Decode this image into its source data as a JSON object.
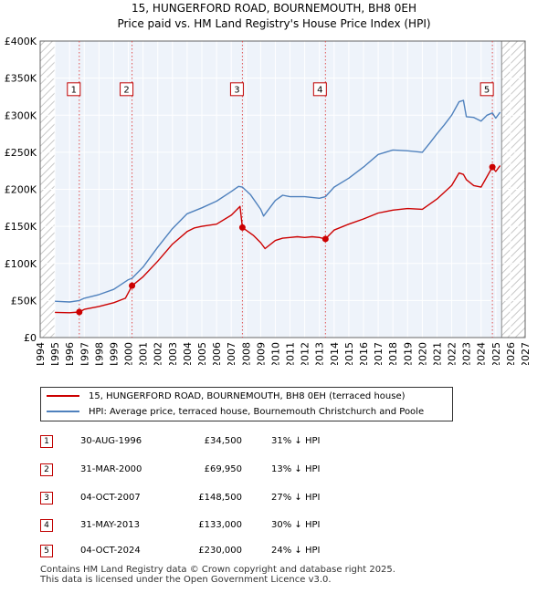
{
  "chart_data": {
    "type": "line",
    "title": "15, HUNGERFORD ROAD, BOURNEMOUTH, BH8 0EH",
    "subtitle": "Price paid vs. HM Land Registry's House Price Index (HPI)",
    "xlim": [
      1994,
      2027
    ],
    "ylim": [
      0,
      400000
    ],
    "y_ticks": [
      0,
      50000,
      100000,
      150000,
      200000,
      250000,
      300000,
      350000,
      400000
    ],
    "y_tick_labels": [
      "£0",
      "£50K",
      "£100K",
      "£150K",
      "£200K",
      "£250K",
      "£300K",
      "£350K",
      "£400K"
    ],
    "x_ticks": [
      1994,
      1995,
      1996,
      1997,
      1998,
      1999,
      2000,
      2001,
      2002,
      2003,
      2004,
      2005,
      2006,
      2007,
      2008,
      2009,
      2010,
      2011,
      2012,
      2013,
      2014,
      2015,
      2016,
      2017,
      2018,
      2019,
      2020,
      2021,
      2022,
      2023,
      2024,
      2025,
      2026,
      2027
    ],
    "x_tick_labels": [
      "1994",
      "1995",
      "1996",
      "1997",
      "1998",
      "1999",
      "2000",
      "2001",
      "2002",
      "2003",
      "2004",
      "2005",
      "2006",
      "2007",
      "2008",
      "2009",
      "2010",
      "2011",
      "2012",
      "2013",
      "2014",
      "2015",
      "2016",
      "2017",
      "2018",
      "2019",
      "2020",
      "2021",
      "2022",
      "2023",
      "2024",
      "2025",
      "2026",
      "2027"
    ],
    "data_start": 1995.0,
    "data_end": 2025.4,
    "grid": true,
    "series": [
      {
        "name": "15, HUNGERFORD ROAD, BOURNEMOUTH, BH8 0EH (terraced house)",
        "color": "#cc0000",
        "x": [
          1995.0,
          1996.0,
          1996.66,
          1997.0,
          1998.0,
          1999.0,
          1999.8,
          2000.25,
          2001.0,
          2002.0,
          2003.0,
          2004.0,
          2004.5,
          2005.0,
          2006.0,
          2007.0,
          2007.6,
          2007.76,
          2008.0,
          2008.5,
          2009.0,
          2009.3,
          2010.0,
          2010.5,
          2011.0,
          2011.5,
          2012.0,
          2012.5,
          2013.0,
          2013.41,
          2014.0,
          2015.0,
          2016.0,
          2017.0,
          2017.5,
          2018.0,
          2019.0,
          2020.0,
          2020.5,
          2021.0,
          2022.0,
          2022.5,
          2022.8,
          2023.0,
          2023.5,
          2024.0,
          2024.77,
          2025.0,
          2025.3
        ],
        "values": [
          34000,
          33500,
          34500,
          38000,
          42000,
          47000,
          53000,
          69950,
          82000,
          103000,
          126000,
          143000,
          148000,
          150000,
          153000,
          165000,
          177000,
          148500,
          145000,
          138000,
          128000,
          120000,
          131000,
          134000,
          135000,
          136000,
          135000,
          136000,
          135000,
          133000,
          145000,
          153000,
          160000,
          168000,
          170000,
          172000,
          174000,
          173000,
          180000,
          187000,
          205000,
          222000,
          220000,
          213000,
          205000,
          203000,
          230000,
          224000,
          232000
        ]
      },
      {
        "name": "HPI: Average price, terraced house, Bournemouth Christchurch and Poole",
        "color": "#4f81bd",
        "x": [
          1995.0,
          1996.0,
          1996.66,
          1997.0,
          1998.0,
          1999.0,
          2000.0,
          2000.25,
          2001.0,
          2002.0,
          2003.0,
          2004.0,
          2005.0,
          2006.0,
          2007.0,
          2007.5,
          2007.76,
          2008.3,
          2009.0,
          2009.2,
          2010.0,
          2010.5,
          2011.0,
          2012.0,
          2013.0,
          2013.41,
          2014.0,
          2015.0,
          2016.0,
          2017.0,
          2018.0,
          2019.0,
          2020.0,
          2020.5,
          2021.0,
          2021.5,
          2022.0,
          2022.5,
          2022.8,
          2023.0,
          2023.5,
          2024.0,
          2024.4,
          2024.77,
          2025.0,
          2025.3
        ],
        "values": [
          49000,
          48000,
          50000,
          53000,
          58000,
          65000,
          78000,
          80000,
          95000,
          122000,
          147000,
          167000,
          175000,
          184000,
          197000,
          204000,
          203000,
          193000,
          173000,
          164000,
          185000,
          192000,
          190000,
          190000,
          188000,
          190000,
          203000,
          215000,
          230000,
          247000,
          253000,
          252000,
          250000,
          262000,
          275000,
          287000,
          300000,
          318000,
          320000,
          298000,
          297000,
          292000,
          300000,
          303000,
          296000,
          304000
        ]
      }
    ],
    "sales": [
      {
        "label": "1",
        "x": 1996.66,
        "price": 34500
      },
      {
        "label": "2",
        "x": 2000.25,
        "price": 69950
      },
      {
        "label": "3",
        "x": 2007.76,
        "price": 148500
      },
      {
        "label": "4",
        "x": 2013.41,
        "price": 133000
      },
      {
        "label": "5",
        "x": 2024.77,
        "price": 230000
      }
    ],
    "box_value": 335000
  },
  "legend": {
    "property_label": "15, HUNGERFORD ROAD, BOURNEMOUTH, BH8 0EH (terraced house)",
    "hpi_label": "HPI: Average price, terraced house, Bournemouth Christchurch and Poole"
  },
  "transactions": [
    {
      "num": "1",
      "date": "30-AUG-1996",
      "price": "£34,500",
      "hpi": "31% ↓ HPI"
    },
    {
      "num": "2",
      "date": "31-MAR-2000",
      "price": "£69,950",
      "hpi": "13% ↓ HPI"
    },
    {
      "num": "3",
      "date": "04-OCT-2007",
      "price": "£148,500",
      "hpi": "27% ↓ HPI"
    },
    {
      "num": "4",
      "date": "31-MAY-2013",
      "price": "£133,000",
      "hpi": "30% ↓ HPI"
    },
    {
      "num": "5",
      "date": "04-OCT-2024",
      "price": "£230,000",
      "hpi": "24% ↓ HPI"
    }
  ],
  "footer": {
    "line1": "Contains HM Land Registry data © Crown copyright and database right 2025.",
    "line2": "This data is licensed under the Open Government Licence v3.0."
  }
}
